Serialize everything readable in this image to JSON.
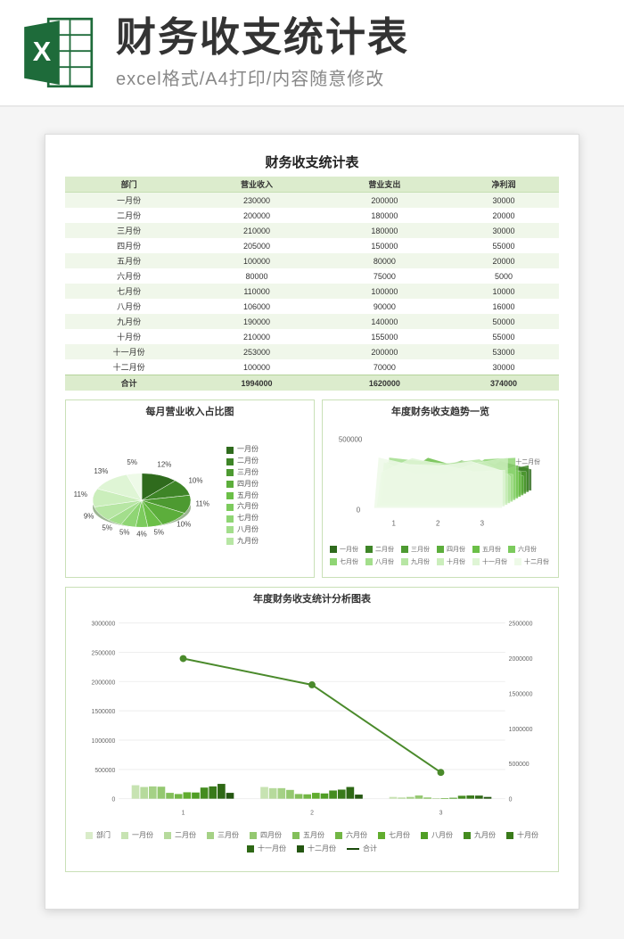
{
  "banner": {
    "title": "财务收支统计表",
    "subtitle": "excel格式/A4打印/内容随意修改"
  },
  "doc": {
    "title": "财务收支统计表"
  },
  "table": {
    "columns": [
      "部门",
      "营业收入",
      "营业支出",
      "净利润"
    ],
    "rows": [
      [
        "一月份",
        "230000",
        "200000",
        "30000"
      ],
      [
        "二月份",
        "200000",
        "180000",
        "20000"
      ],
      [
        "三月份",
        "210000",
        "180000",
        "30000"
      ],
      [
        "四月份",
        "205000",
        "150000",
        "55000"
      ],
      [
        "五月份",
        "100000",
        "80000",
        "20000"
      ],
      [
        "六月份",
        "80000",
        "75000",
        "5000"
      ],
      [
        "七月份",
        "110000",
        "100000",
        "10000"
      ],
      [
        "八月份",
        "106000",
        "90000",
        "16000"
      ],
      [
        "九月份",
        "190000",
        "140000",
        "50000"
      ],
      [
        "十月份",
        "210000",
        "155000",
        "55000"
      ],
      [
        "十一月份",
        "253000",
        "200000",
        "53000"
      ],
      [
        "十二月份",
        "100000",
        "70000",
        "30000"
      ]
    ],
    "total": [
      "合计",
      "1994000",
      "1620000",
      "374000"
    ],
    "header_bg": "#dceccd",
    "row_odd_bg": "#f0f7ea",
    "row_even_bg": "#ffffff"
  },
  "pie": {
    "title": "每月营业收入占比图",
    "labels": [
      "一月份",
      "二月份",
      "三月份",
      "四月份",
      "五月份",
      "六月份",
      "七月份",
      "八月份",
      "九月份",
      "十月份",
      "十一月份",
      "十二月份"
    ],
    "values": [
      12,
      10,
      11,
      10,
      5,
      4,
      5,
      5,
      9,
      11,
      13,
      5
    ],
    "colors": [
      "#2f6b1d",
      "#3e8527",
      "#4d9a31",
      "#5cae3b",
      "#6bbf47",
      "#7ccb5d",
      "#8fd574",
      "#a3de8c",
      "#b7e6a4",
      "#cbeebc",
      "#dff5d5",
      "#eefae8"
    ],
    "label_fontsize": 8,
    "legend_items": [
      "一月份",
      "二月份",
      "三月份",
      "四月份",
      "五月份",
      "六月份",
      "七月份",
      "八月份",
      "九月份"
    ]
  },
  "trend": {
    "title": "年度财务收支趋势一览",
    "ylabel": "500000",
    "x_ticks": [
      "1",
      "2",
      "3"
    ],
    "legend": [
      "一月份",
      "二月份",
      "三月份",
      "四月份",
      "五月份",
      "六月份",
      "七月份",
      "八月份",
      "九月份",
      "十月份",
      "十一月份",
      "十二月份"
    ],
    "colors": [
      "#2f6b1d",
      "#3e8527",
      "#4d9a31",
      "#5cae3b",
      "#6bbf47",
      "#7ccb5d",
      "#8fd574",
      "#a3de8c",
      "#b7e6a4",
      "#cbeebc",
      "#dff5d5",
      "#eefae8"
    ]
  },
  "big": {
    "title": "年度财务收支统计分析图表",
    "y_left": [
      0,
      500000,
      1000000,
      1500000,
      2000000,
      2500000,
      3000000
    ],
    "y_right": [
      0,
      500000,
      1000000,
      1500000,
      2000000,
      2500000
    ],
    "x_groups": [
      "1",
      "2",
      "3"
    ],
    "series": [
      "部门",
      "一月份",
      "二月份",
      "三月份",
      "四月份",
      "五月份",
      "六月份",
      "七月份",
      "八月份",
      "九月份",
      "十月份",
      "十一月份",
      "十二月份",
      "合计"
    ],
    "colors": [
      "#d9ecc9",
      "#c7e3b2",
      "#b6da9c",
      "#a5d186",
      "#94c870",
      "#83bf5a",
      "#72b644",
      "#61ad2e",
      "#509e25",
      "#448c1f",
      "#397a1a",
      "#2e6815",
      "#245611",
      "#1a4a0b"
    ],
    "bars_group1": [
      230000,
      200000,
      210000,
      205000,
      100000,
      80000,
      110000,
      106000,
      190000,
      210000,
      253000,
      100000
    ],
    "bars_group2": [
      200000,
      180000,
      180000,
      150000,
      80000,
      75000,
      100000,
      90000,
      140000,
      155000,
      200000,
      70000
    ],
    "bars_group3": [
      30000,
      20000,
      30000,
      55000,
      20000,
      5000,
      10000,
      16000,
      50000,
      55000,
      53000,
      30000
    ],
    "line_vals": [
      1994000,
      1620000,
      374000
    ],
    "line_color": "#4a8a2b"
  }
}
